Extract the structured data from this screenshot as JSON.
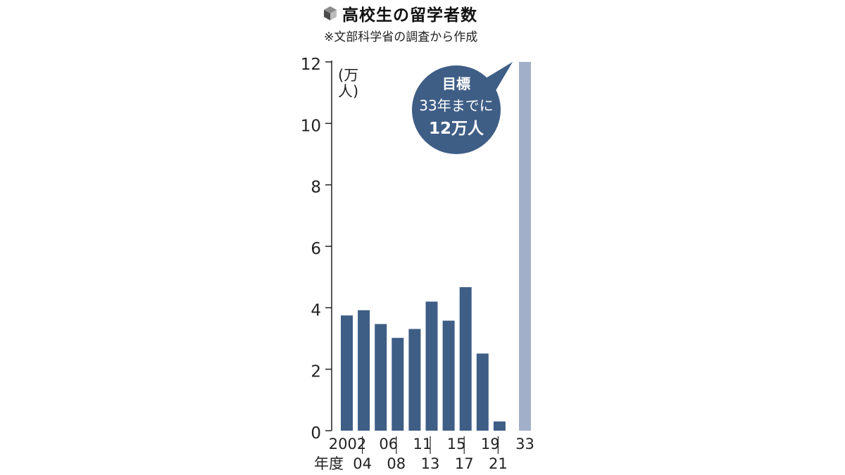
{
  "header": {
    "title": "高校生の留学者数",
    "subtitle": "※文部科学省の調査から作成",
    "unit": "(万人)"
  },
  "annotation": {
    "line1": "目標",
    "line2": "33年までに",
    "line3": "12万人"
  },
  "chart_data": {
    "type": "bar",
    "title": "高校生の留学者数",
    "subtitle": "※文部科学省の調査から作成",
    "ylabel": "(万人)",
    "xlabel": "年度",
    "ylim": [
      0,
      12
    ],
    "yticks": [
      "0",
      "2",
      "4",
      "6",
      "8",
      "10",
      "12"
    ],
    "categories": [
      "2002",
      "04",
      "06",
      "08",
      "11",
      "13",
      "15",
      "17",
      "19",
      "21",
      "33"
    ],
    "values": [
      3.75,
      3.92,
      3.47,
      3.02,
      3.31,
      4.2,
      3.58,
      4.67,
      2.51,
      0.3,
      12
    ],
    "target_index": 10,
    "colors": {
      "bar": "#3f5e86",
      "target": "#a2afc8",
      "bubble": "#3f5e86"
    },
    "grid": false
  }
}
